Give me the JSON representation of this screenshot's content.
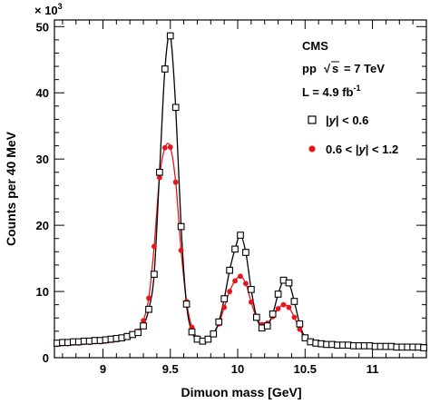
{
  "chart_data": {
    "type": "line",
    "xlabel": "Dimuon mass [GeV]",
    "ylabel": "Counts per 40 MeV",
    "y_multiplier": "× 10",
    "y_multiplier_exp": "3",
    "xlim": [
      8.64,
      11.4
    ],
    "ylim": [
      0,
      51
    ],
    "x_ticks": [
      9,
      9.5,
      10,
      10.5,
      11
    ],
    "x_tick_labels": [
      "9",
      "9.5",
      "10",
      "10.5",
      "11"
    ],
    "y_ticks": [
      0,
      10,
      20,
      30,
      40,
      50
    ],
    "y_tick_labels": [
      "0",
      "10",
      "20",
      "30",
      "40",
      "50"
    ],
    "annotations": {
      "experiment": "CMS",
      "collision": "pp",
      "sqrt": "√",
      "s": "s",
      "energy": "= 7 TeV",
      "lumi": "L = 4.9 fb",
      "lumi_exp": "-1"
    },
    "series": [
      {
        "name": "|y| < 0.6",
        "legend_pre": "|",
        "legend_y": "y",
        "legend_post": "| < 0.6",
        "marker": "open-square",
        "color": "#000000",
        "x": [
          8.66,
          8.7,
          8.74,
          8.78,
          8.82,
          8.86,
          8.9,
          8.94,
          8.98,
          9.02,
          9.06,
          9.1,
          9.14,
          9.18,
          9.22,
          9.26,
          9.3,
          9.34,
          9.38,
          9.42,
          9.46,
          9.5,
          9.54,
          9.58,
          9.62,
          9.66,
          9.7,
          9.74,
          9.78,
          9.82,
          9.86,
          9.9,
          9.94,
          9.98,
          10.02,
          10.06,
          10.1,
          10.14,
          10.18,
          10.22,
          10.26,
          10.3,
          10.34,
          10.38,
          10.42,
          10.46,
          10.5,
          10.54,
          10.58,
          10.62,
          10.66,
          10.7,
          10.74,
          10.78,
          10.82,
          10.86,
          10.9,
          10.94,
          10.98,
          11.02,
          11.06,
          11.1,
          11.14,
          11.18,
          11.22,
          11.26,
          11.3,
          11.34,
          11.38
        ],
        "y": [
          2.2,
          2.3,
          2.3,
          2.4,
          2.4,
          2.5,
          2.5,
          2.6,
          2.6,
          2.7,
          2.8,
          2.9,
          3.0,
          3.2,
          3.5,
          3.8,
          4.8,
          7.3,
          12.6,
          28.0,
          43.6,
          48.6,
          37.8,
          19.8,
          8.1,
          3.9,
          2.8,
          2.5,
          2.8,
          3.6,
          5.4,
          8.9,
          13.2,
          16.4,
          18.5,
          15.9,
          10.3,
          6.1,
          4.5,
          4.8,
          6.6,
          9.6,
          11.7,
          11.3,
          8.5,
          5.1,
          3.0,
          2.4,
          2.2,
          2.1,
          2.0,
          2.0,
          1.9,
          1.9,
          1.9,
          1.8,
          1.8,
          1.8,
          1.8,
          1.7,
          1.7,
          1.7,
          1.7,
          1.6,
          1.6,
          1.6,
          1.6,
          1.6,
          1.5
        ]
      },
      {
        "name": "0.6 < |y| < 1.2",
        "legend_pre": "0.6 < |",
        "legend_y": "y",
        "legend_post": "| < 1.2",
        "marker": "filled-circle",
        "color": "#e8141c",
        "x": [
          8.66,
          8.7,
          8.74,
          8.78,
          8.82,
          8.86,
          8.9,
          8.94,
          8.98,
          9.02,
          9.06,
          9.1,
          9.14,
          9.18,
          9.22,
          9.26,
          9.3,
          9.34,
          9.38,
          9.42,
          9.46,
          9.5,
          9.54,
          9.58,
          9.62,
          9.66,
          9.7,
          9.74,
          9.78,
          9.82,
          9.86,
          9.9,
          9.94,
          9.98,
          10.02,
          10.06,
          10.1,
          10.14,
          10.18,
          10.22,
          10.26,
          10.3,
          10.34,
          10.38,
          10.42,
          10.46,
          10.5,
          10.54,
          10.58,
          10.62,
          10.66,
          10.7,
          10.74,
          10.78,
          10.82,
          10.86,
          10.9,
          10.94,
          10.98,
          11.02,
          11.06,
          11.1,
          11.14,
          11.18,
          11.22,
          11.26,
          11.3,
          11.34,
          11.38
        ],
        "y": [
          2.0,
          2.1,
          2.1,
          2.2,
          2.2,
          2.3,
          2.3,
          2.4,
          2.4,
          2.5,
          2.6,
          2.7,
          2.9,
          3.1,
          3.5,
          4.0,
          5.6,
          9.0,
          16.8,
          27.2,
          31.7,
          31.8,
          26.5,
          16.2,
          8.5,
          4.6,
          3.0,
          2.6,
          2.8,
          3.6,
          5.1,
          7.6,
          10.0,
          11.6,
          12.3,
          11.2,
          8.4,
          6.0,
          5.0,
          5.2,
          6.2,
          7.4,
          8.0,
          7.6,
          6.1,
          4.3,
          3.0,
          2.4,
          2.2,
          2.0,
          2.0,
          1.9,
          1.9,
          1.8,
          1.8,
          1.8,
          1.8,
          1.7,
          1.7,
          1.7,
          1.6,
          1.6,
          1.6,
          1.6,
          1.5,
          1.5,
          1.5,
          1.5,
          1.5
        ]
      }
    ]
  }
}
